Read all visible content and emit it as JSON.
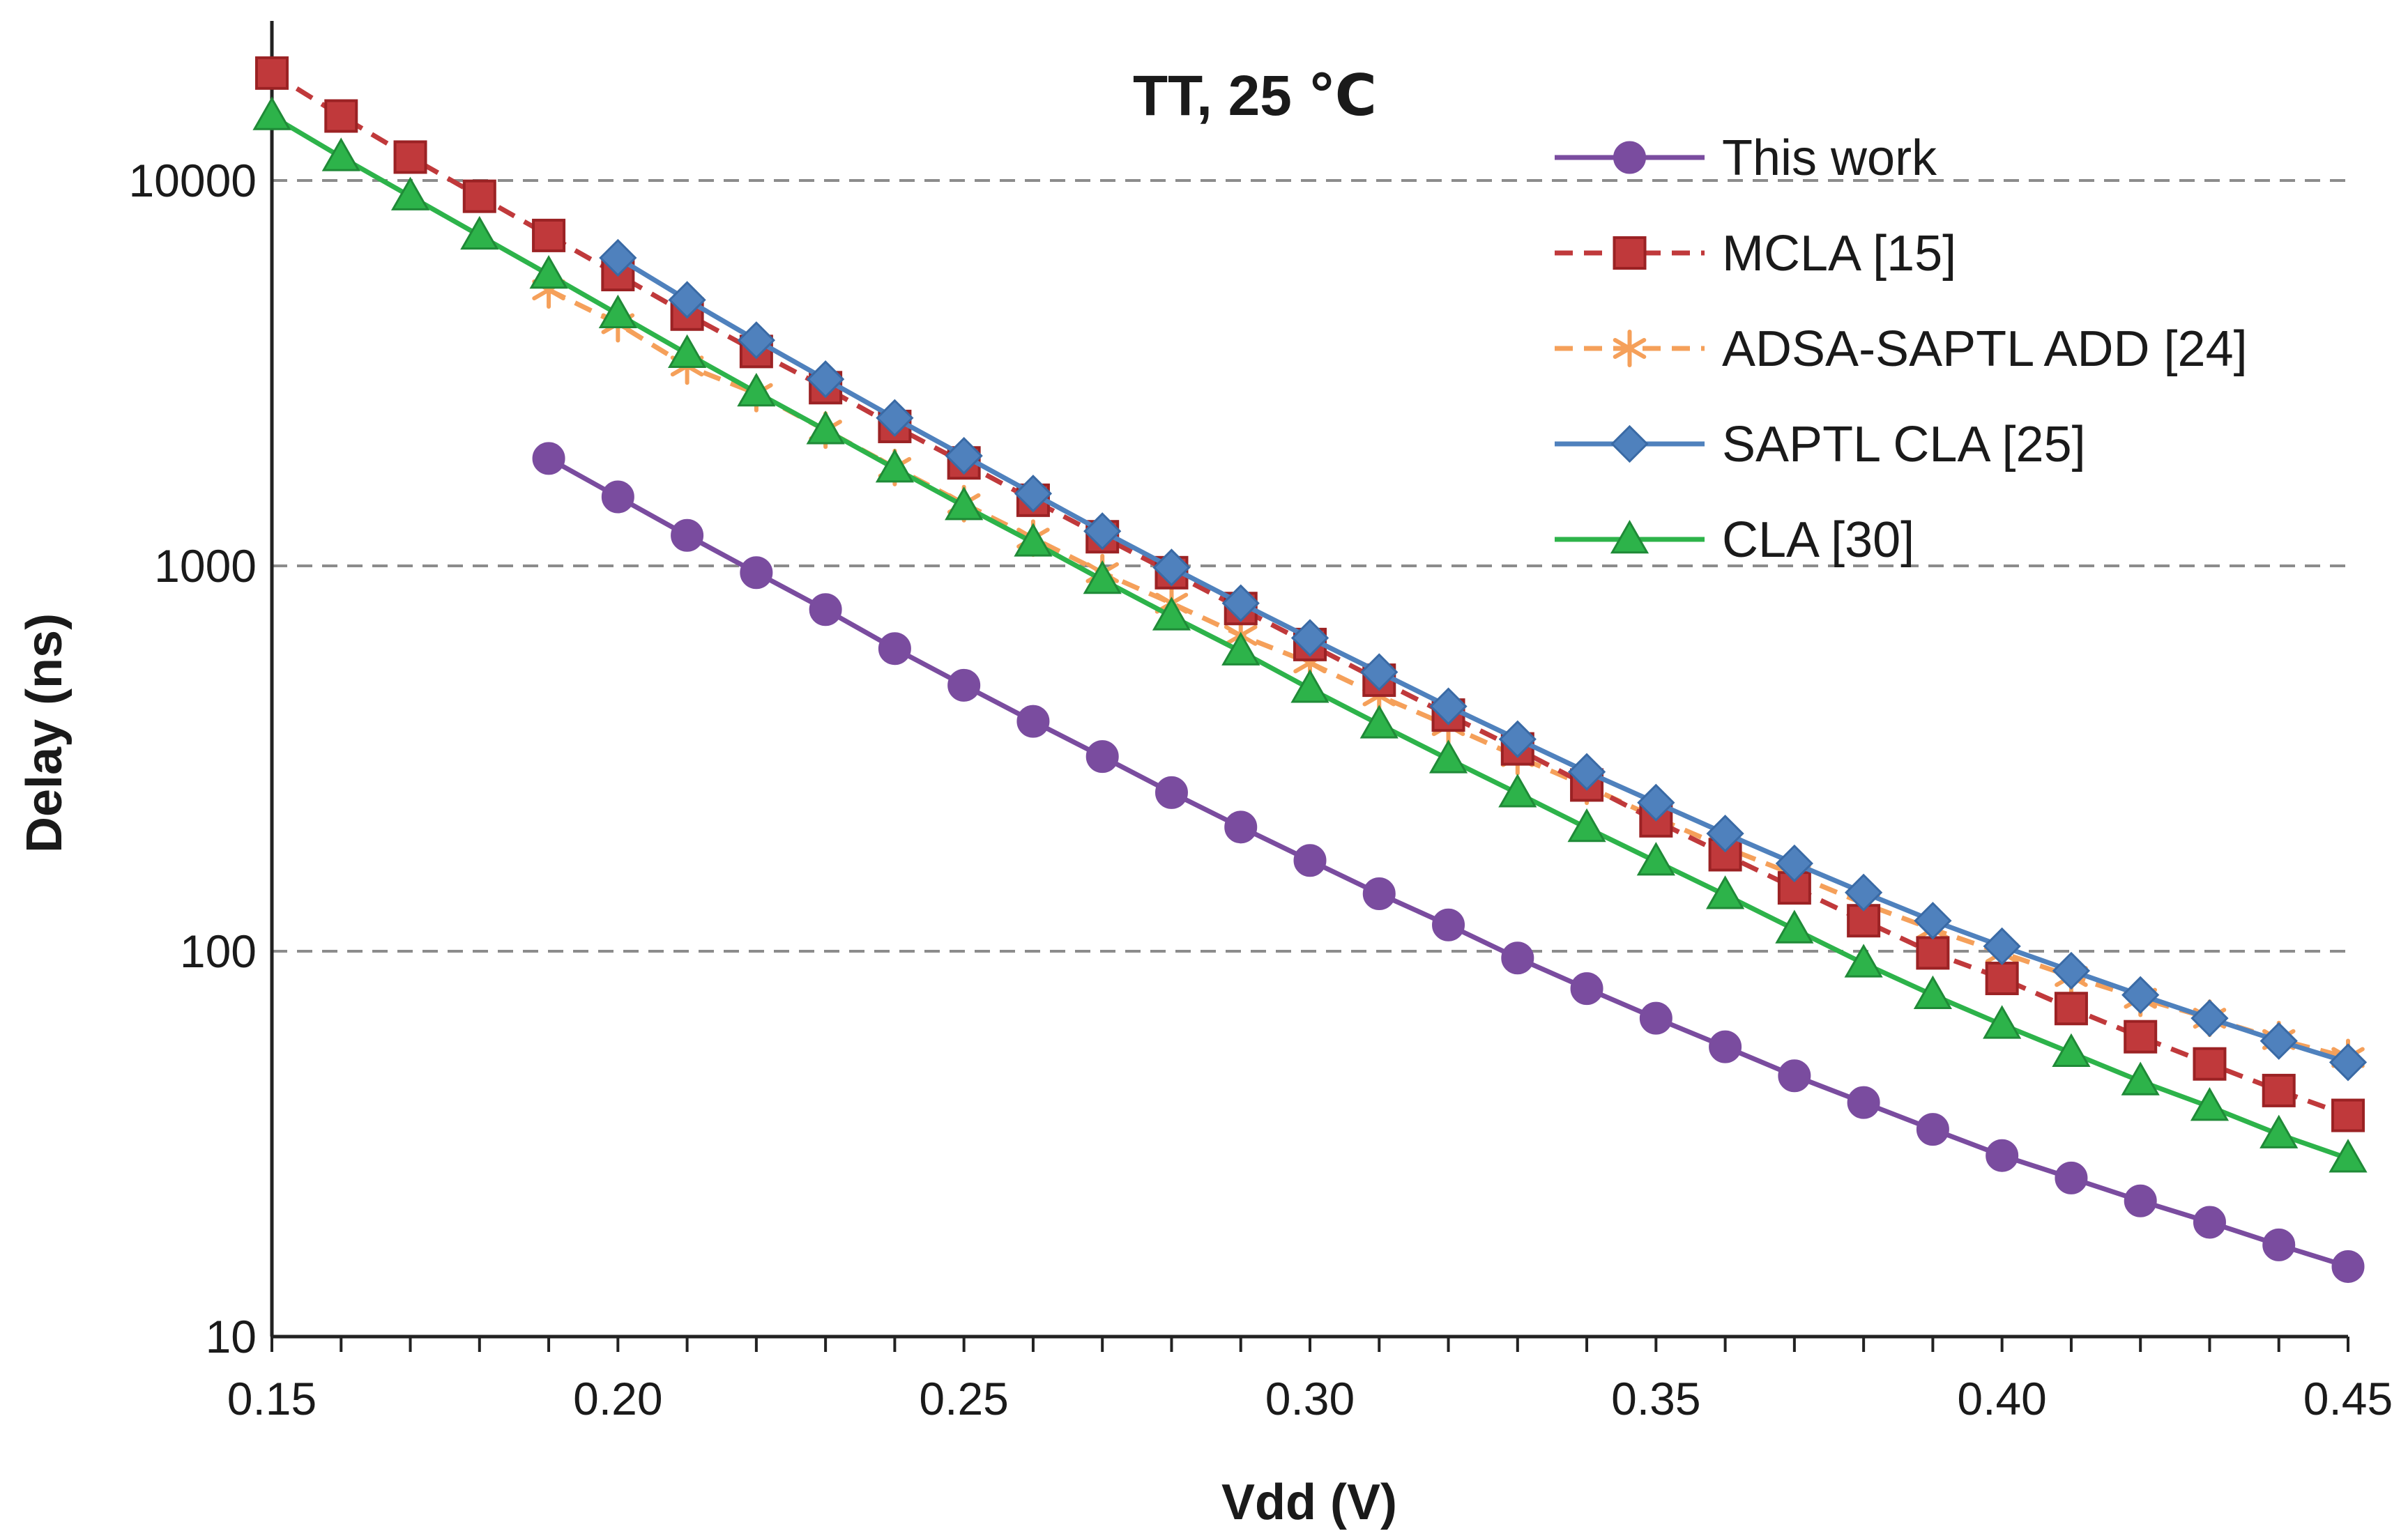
{
  "chart_data": {
    "type": "line",
    "title": "TT, 25 ℃",
    "xlabel": "Vdd (V)",
    "ylabel": "Delay (ns)",
    "xlim": [
      0.15,
      0.45
    ],
    "ylim": [
      10,
      25000
    ],
    "yscale": "log",
    "x_ticks": [
      0.15,
      0.2,
      0.25,
      0.3,
      0.35,
      0.4,
      0.45
    ],
    "x_tick_labels": [
      "0.15",
      "0.20",
      "0.25",
      "0.30",
      "0.35",
      "0.40",
      "0.45"
    ],
    "y_ticks": [
      10,
      100,
      1000,
      10000
    ],
    "y_tick_labels": [
      "10",
      "100",
      "1000",
      "10000"
    ],
    "grid": "horizontal-dashed",
    "legend_position": "top-right",
    "series": [
      {
        "name": "This work",
        "color": "#7a4c9f",
        "marker": "circle",
        "dash": "solid",
        "x": [
          0.19,
          0.2,
          0.21,
          0.22,
          0.23,
          0.24,
          0.25,
          0.26,
          0.27,
          0.28,
          0.29,
          0.3,
          0.31,
          0.32,
          0.33,
          0.34,
          0.35,
          0.36,
          0.37,
          0.38,
          0.39,
          0.4,
          0.41,
          0.42,
          0.43,
          0.44,
          0.45
        ],
        "values": [
          1900,
          1510,
          1200,
          960,
          770,
          610,
          490,
          395,
          320,
          258,
          210,
          172,
          141,
          117,
          96,
          80,
          67,
          56.5,
          47.5,
          40.5,
          34.5,
          29.5,
          25.8,
          22.5,
          19.8,
          17.3,
          15.2
        ]
      },
      {
        "name": "MCLA [15]",
        "color": "#c0393b",
        "marker": "square",
        "dash": "dashed",
        "x": [
          0.15,
          0.16,
          0.17,
          0.18,
          0.19,
          0.2,
          0.21,
          0.22,
          0.23,
          0.24,
          0.25,
          0.26,
          0.27,
          0.28,
          0.29,
          0.3,
          0.31,
          0.32,
          0.33,
          0.34,
          0.35,
          0.36,
          0.37,
          0.38,
          0.39,
          0.4,
          0.41,
          0.42,
          0.43,
          0.44,
          0.45
        ],
        "values": [
          19000,
          14700,
          11500,
          9100,
          7200,
          5700,
          4500,
          3600,
          2900,
          2300,
          1850,
          1480,
          1190,
          960,
          775,
          625,
          505,
          410,
          335,
          270,
          218,
          178,
          146,
          120,
          99,
          85,
          71,
          60,
          51,
          43.5,
          37.5
        ]
      },
      {
        "name": "ADSA-SAPTL ADD [24]",
        "color": "#f5a05a",
        "marker": "asterisk",
        "dash": "dashed",
        "x": [
          0.19,
          0.2,
          0.21,
          0.22,
          0.23,
          0.24,
          0.25,
          0.26,
          0.27,
          0.28,
          0.29,
          0.3,
          0.31,
          0.32,
          0.33,
          0.34,
          0.35,
          0.36,
          0.37,
          0.38,
          0.39,
          0.4,
          0.41,
          0.42,
          0.43,
          0.44,
          0.45
        ],
        "values": [
          5200,
          4250,
          3300,
          2800,
          2250,
          1800,
          1450,
          1180,
          960,
          800,
          660,
          560,
          460,
          385,
          320,
          268,
          222,
          186,
          158,
          133,
          114,
          99,
          86,
          75.5,
          67,
          59,
          53
        ]
      },
      {
        "name": "SAPTL CLA [25]",
        "color": "#4f81bd",
        "marker": "diamond",
        "dash": "solid",
        "x": [
          0.2,
          0.21,
          0.22,
          0.23,
          0.24,
          0.25,
          0.26,
          0.27,
          0.28,
          0.29,
          0.3,
          0.31,
          0.32,
          0.33,
          0.34,
          0.35,
          0.36,
          0.37,
          0.38,
          0.39,
          0.4,
          0.41,
          0.42,
          0.43,
          0.44,
          0.45
        ],
        "values": [
          6300,
          4900,
          3850,
          3050,
          2420,
          1930,
          1540,
          1230,
          990,
          800,
          650,
          530,
          432,
          355,
          292,
          243,
          202,
          169,
          142,
          120,
          103,
          89,
          77,
          67,
          58.5,
          51.5
        ]
      },
      {
        "name": "CLA [30]",
        "color": "#2db34a",
        "marker": "triangle",
        "dash": "solid",
        "x": [
          0.15,
          0.16,
          0.17,
          0.18,
          0.19,
          0.2,
          0.21,
          0.22,
          0.23,
          0.24,
          0.25,
          0.26,
          0.27,
          0.28,
          0.29,
          0.3,
          0.31,
          0.32,
          0.33,
          0.34,
          0.35,
          0.36,
          0.37,
          0.38,
          0.39,
          0.4,
          0.41,
          0.42,
          0.43,
          0.44,
          0.45
        ],
        "values": [
          14700,
          11500,
          9100,
          7200,
          5700,
          4500,
          3550,
          2820,
          2250,
          1790,
          1430,
          1150,
          920,
          740,
          600,
          480,
          388,
          315,
          257,
          209,
          171,
          140,
          114,
          93,
          77,
          64.5,
          54.5,
          46,
          39.5,
          33.5,
          29
        ]
      }
    ]
  }
}
